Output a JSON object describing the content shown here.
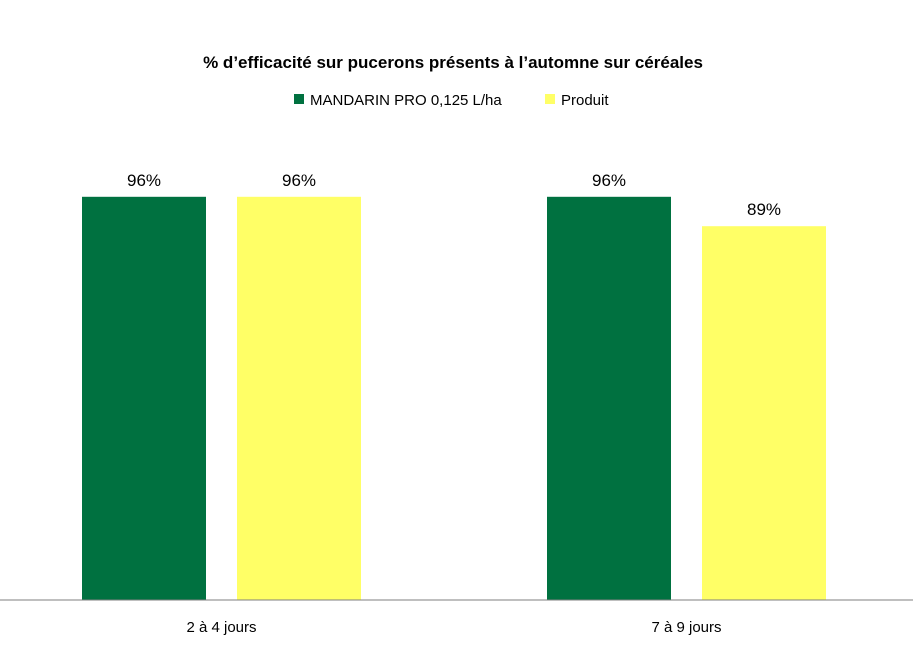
{
  "chart_data": {
    "type": "bar",
    "title": "% d’efficacité sur pucerons présents à l’automne sur céréales",
    "categories": [
      "2 à 4 jours",
      "7 à 9 jours"
    ],
    "series": [
      {
        "name": "MANDARIN PRO 0,125 L/ha",
        "color": "#007140",
        "values": [
          96,
          96
        ],
        "labels": [
          "96%",
          "96%"
        ]
      },
      {
        "name": "Produit",
        "color": "#FFFF66",
        "values": [
          96,
          89
        ],
        "labels": [
          "96%",
          "89%"
        ]
      }
    ],
    "xlabel": "",
    "ylabel": "",
    "ylim": [
      0,
      100
    ],
    "grid": false,
    "legend_position": "top"
  }
}
